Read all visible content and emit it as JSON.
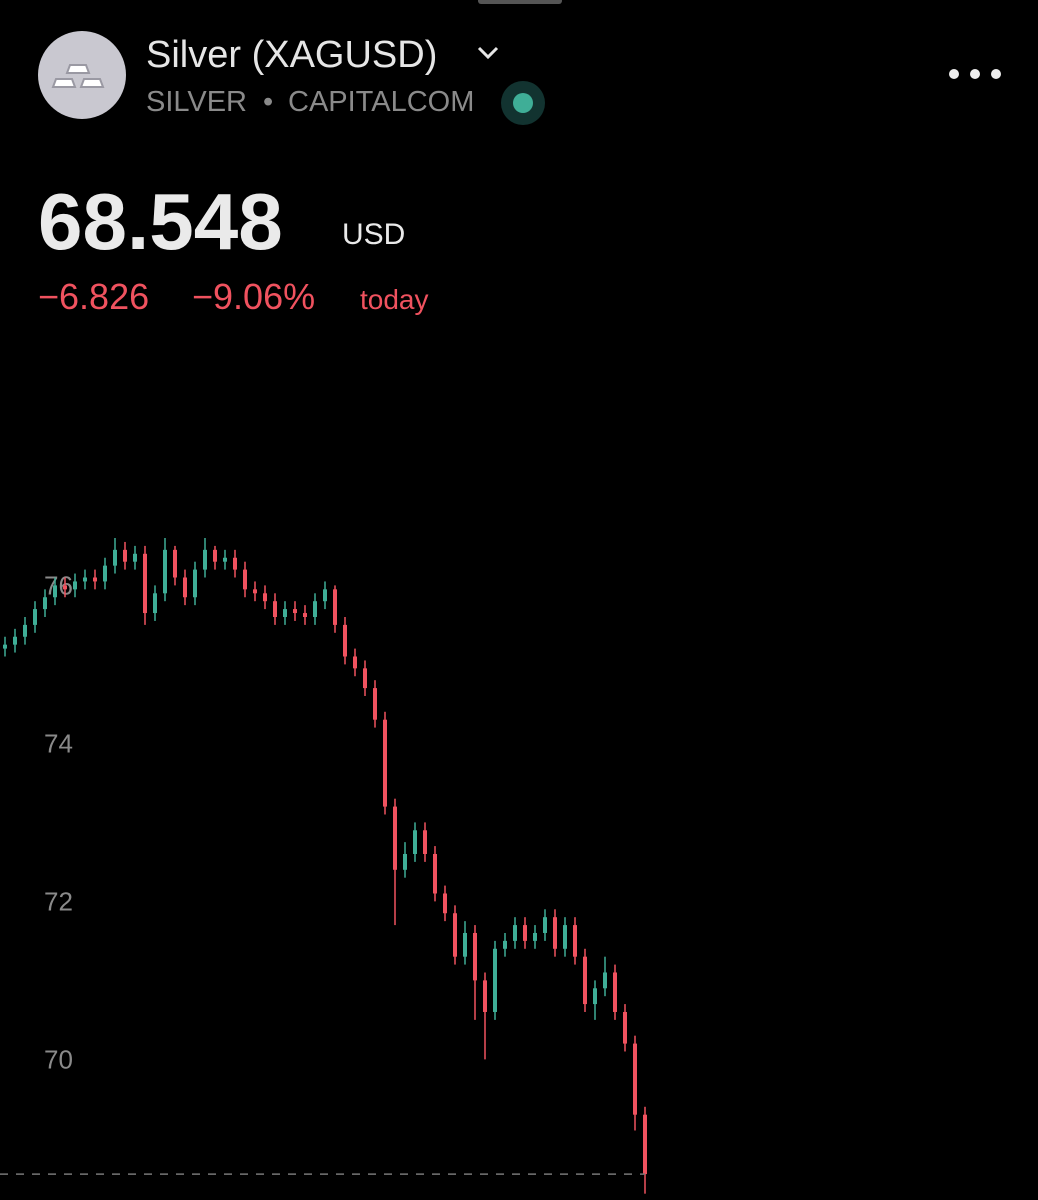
{
  "header": {
    "title": "Silver (XAGUSD)",
    "symbol": "SILVER",
    "separator": "•",
    "exchange": "CAPITALCOM",
    "price": "68.548",
    "currency": "USD",
    "change": "−6.826",
    "change_percent": "−9.06%",
    "period": "today"
  },
  "chart_data": {
    "type": "candlestick",
    "up_color": "#3fae97",
    "down_color": "#f0525f",
    "grid": false,
    "ylim": [
      68.22,
      78.6
    ],
    "yticks": [
      70,
      72,
      74,
      76
    ],
    "open": [
      75.2,
      75.25,
      75.35,
      75.5,
      75.7,
      75.85,
      76.0,
      75.95,
      76.05,
      76.1,
      76.05,
      76.25,
      76.45,
      76.3,
      76.4,
      75.65,
      75.9,
      76.45,
      76.1,
      75.85,
      76.2,
      76.45,
      76.3,
      76.35,
      76.2,
      75.95,
      75.9,
      75.8,
      75.6,
      75.7,
      75.65,
      75.6,
      75.8,
      75.95,
      75.5,
      75.1,
      74.95,
      74.7,
      74.3,
      73.2,
      72.4,
      72.6,
      72.9,
      72.6,
      72.1,
      71.85,
      71.3,
      71.6,
      71.0,
      70.6,
      71.4,
      71.5,
      71.7,
      71.5,
      71.6,
      71.8,
      71.4,
      71.7,
      71.3,
      70.7,
      70.9,
      71.1,
      70.6,
      70.2,
      69.3
    ],
    "high": [
      75.35,
      75.45,
      75.6,
      75.8,
      75.95,
      76.1,
      76.1,
      76.15,
      76.2,
      76.2,
      76.35,
      76.6,
      76.55,
      76.5,
      76.5,
      76.0,
      76.6,
      76.5,
      76.2,
      76.3,
      76.6,
      76.5,
      76.45,
      76.45,
      76.3,
      76.05,
      76.0,
      75.9,
      75.8,
      75.8,
      75.75,
      75.9,
      76.05,
      76.0,
      75.6,
      75.2,
      75.05,
      74.8,
      74.4,
      73.3,
      72.75,
      73.0,
      73.0,
      72.7,
      72.2,
      71.95,
      71.75,
      71.7,
      71.1,
      71.5,
      71.6,
      71.8,
      71.8,
      71.7,
      71.9,
      71.9,
      71.8,
      71.8,
      71.4,
      71.0,
      71.3,
      71.2,
      70.7,
      70.3,
      69.4
    ],
    "low": [
      75.1,
      75.15,
      75.25,
      75.4,
      75.6,
      75.75,
      75.85,
      75.85,
      75.95,
      75.95,
      75.95,
      76.15,
      76.2,
      76.2,
      75.5,
      75.55,
      75.8,
      76.0,
      75.75,
      75.75,
      76.1,
      76.2,
      76.2,
      76.1,
      75.85,
      75.8,
      75.7,
      75.5,
      75.5,
      75.55,
      75.5,
      75.5,
      75.7,
      75.4,
      75.0,
      74.85,
      74.6,
      74.2,
      73.1,
      71.7,
      72.3,
      72.5,
      72.5,
      72.0,
      71.75,
      71.2,
      71.2,
      70.5,
      70.0,
      70.5,
      71.3,
      71.4,
      71.4,
      71.4,
      71.5,
      71.3,
      71.3,
      71.2,
      70.6,
      70.5,
      70.8,
      70.5,
      70.1,
      69.1,
      68.3
    ],
    "close": [
      75.25,
      75.35,
      75.5,
      75.7,
      75.85,
      76.0,
      75.95,
      76.05,
      76.1,
      76.05,
      76.25,
      76.45,
      76.3,
      76.4,
      75.65,
      75.9,
      76.45,
      76.1,
      75.85,
      76.2,
      76.45,
      76.3,
      76.35,
      76.2,
      75.95,
      75.9,
      75.8,
      75.6,
      75.7,
      75.65,
      75.6,
      75.8,
      75.95,
      75.5,
      75.1,
      74.95,
      74.7,
      74.3,
      73.2,
      72.4,
      72.6,
      72.9,
      72.6,
      72.1,
      71.85,
      71.3,
      71.6,
      71.0,
      70.6,
      71.4,
      71.5,
      71.7,
      71.5,
      71.6,
      71.8,
      71.4,
      71.7,
      71.3,
      70.7,
      70.9,
      71.1,
      70.6,
      70.2,
      69.3,
      68.548
    ]
  }
}
